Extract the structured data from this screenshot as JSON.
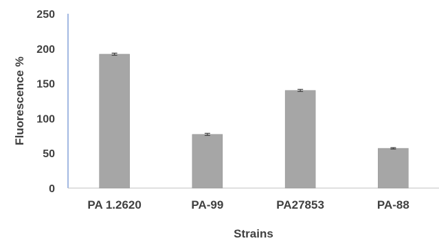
{
  "chart_data": {
    "type": "bar",
    "categories": [
      "PA 1.2620",
      "PA-99",
      "PA27853",
      "PA-88"
    ],
    "values": [
      192,
      77,
      140,
      57
    ],
    "errors": [
      1.5,
      1.5,
      1.5,
      1
    ],
    "title": "",
    "xlabel": "Strains",
    "ylabel": "Fluorescence %",
    "ylim": [
      0,
      250
    ],
    "yticks": [
      "0",
      "50",
      "100",
      "150",
      "200",
      "250"
    ],
    "grid": false,
    "legend": "none",
    "colors": {
      "bar": "#a6a6a6",
      "bar_edge": "#8c8c8c",
      "axis": "#4472c4",
      "baseline": "#bfbfbf",
      "error": "#404040",
      "text": "#404040"
    }
  }
}
